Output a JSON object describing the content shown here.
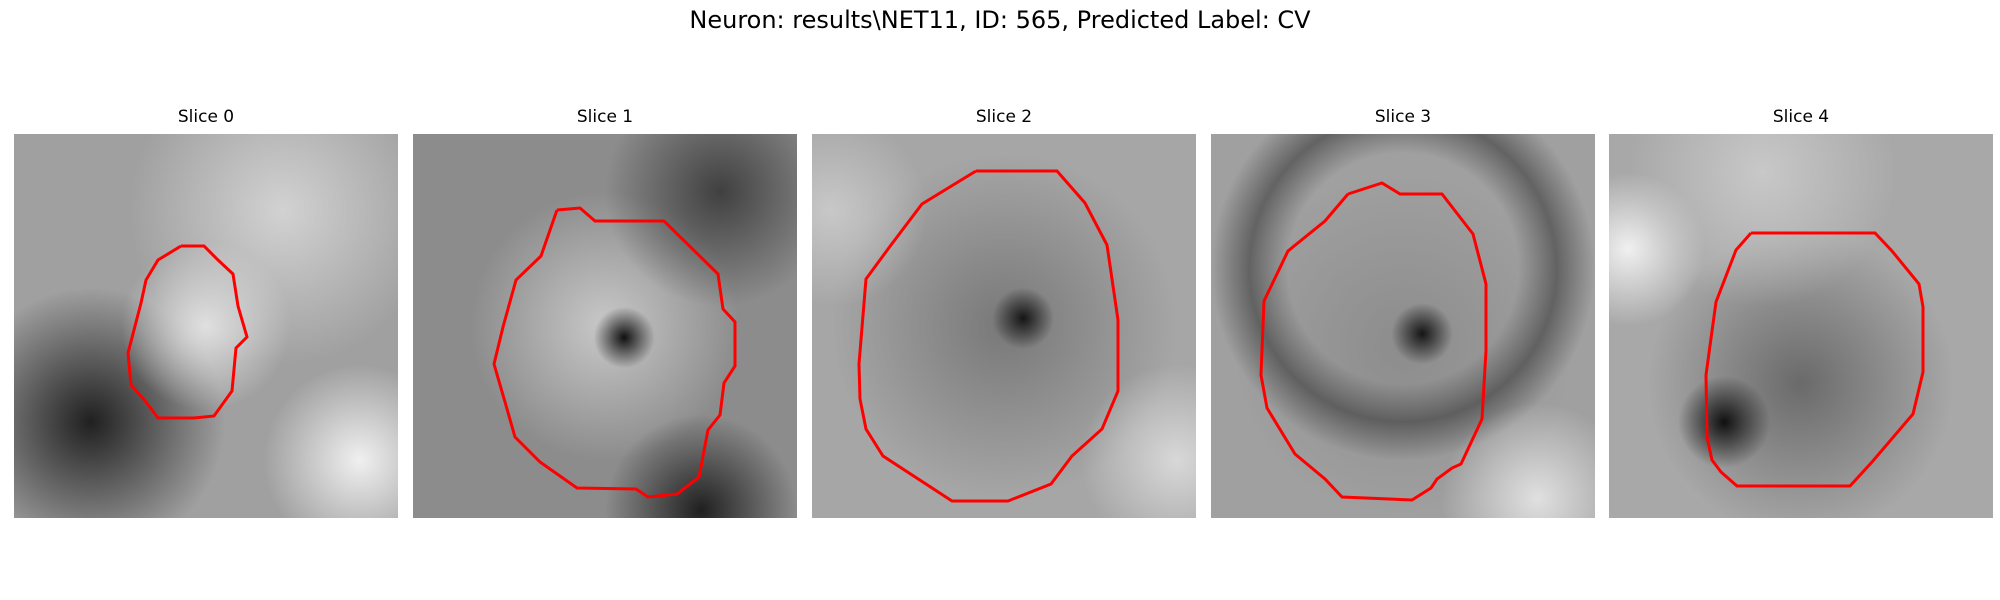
{
  "figure": {
    "title": "Neuron: results\\NET11, ID: 565, Predicted Label: CV"
  },
  "panels": [
    {
      "label": "Slice 0"
    },
    {
      "label": "Slice 1"
    },
    {
      "label": "Slice 2"
    },
    {
      "label": "Slice 3"
    },
    {
      "label": "Slice 4"
    }
  ],
  "colors": {
    "contour": "#ff0000"
  }
}
